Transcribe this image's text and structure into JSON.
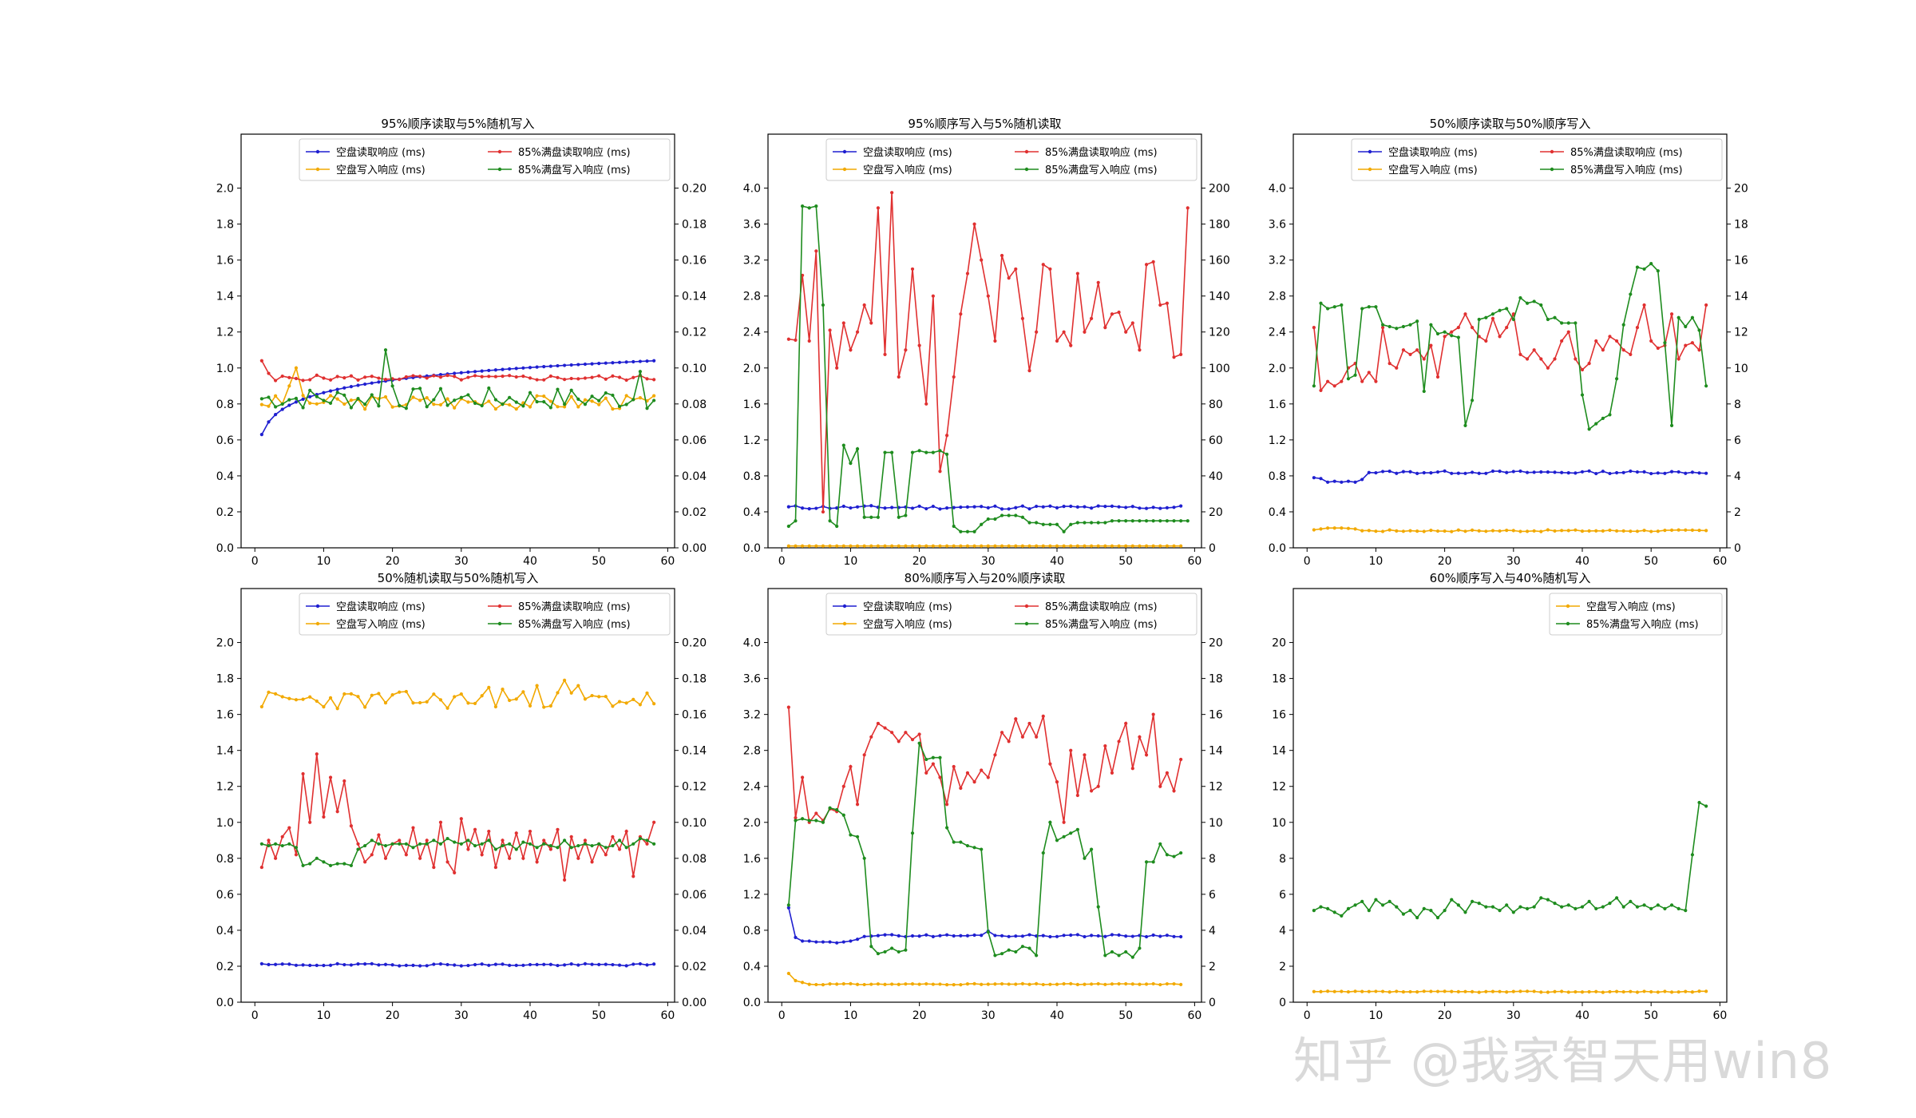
{
  "watermark": "知乎 @我家智天用win8",
  "colors": {
    "blue": "#1f1fd0",
    "orange": "#f2a900",
    "red": "#e03030",
    "green": "#1e8c1e",
    "axis": "#000000"
  },
  "chart_data": [
    {
      "type": "line",
      "title": "95%顺序读取与5%随机写入",
      "x_ticks": [
        0,
        10,
        20,
        30,
        40,
        50,
        60
      ],
      "xlim": [
        -2,
        61
      ],
      "ylim": [
        0,
        2.3
      ],
      "y_ticks": [
        0.0,
        0.2,
        0.4,
        0.6,
        0.8,
        1.0,
        1.2,
        1.4,
        1.6,
        1.8,
        2.0
      ],
      "y_tick_fmt": 1,
      "y2lim": [
        0,
        0.23
      ],
      "y2_ticks": [
        0.0,
        0.02,
        0.04,
        0.06,
        0.08,
        0.1,
        0.12,
        0.14,
        0.16,
        0.18,
        0.2
      ],
      "y2_tick_fmt": 2,
      "legend_cols": 2,
      "series": [
        {
          "name": "空盘读取响应 (ms)",
          "color": "blue",
          "axis": "left",
          "gen": "log",
          "a": 0.63,
          "b": 0.41
        },
        {
          "name": "空盘写入响应 (ms)",
          "color": "orange",
          "axis": "right",
          "gen": "noise",
          "base": 0.081,
          "amp": 0.004,
          "seed": 3,
          "overrides": {
            "6": 0.1,
            "5": 0.09
          }
        },
        {
          "name": "85%满盘读取响应 (ms)",
          "color": "red",
          "axis": "left",
          "gen": "noise",
          "base": 0.945,
          "amp": 0.015,
          "seed": 5,
          "overrides": {
            "1": 1.04,
            "2": 0.97,
            "3": 0.93
          }
        },
        {
          "name": "85%满盘写入响应 (ms)",
          "color": "green",
          "axis": "right",
          "gen": "noise",
          "base": 0.083,
          "amp": 0.006,
          "seed": 7,
          "overrides": {
            "19": 0.11,
            "20": 0.09,
            "56": 0.098
          }
        }
      ]
    },
    {
      "type": "line",
      "title": "95%顺序写入与5%随机读取",
      "x_ticks": [
        0,
        10,
        20,
        30,
        40,
        50,
        60
      ],
      "xlim": [
        -2,
        61
      ],
      "ylim": [
        0,
        4.6
      ],
      "y_ticks": [
        0.0,
        0.4,
        0.8,
        1.2,
        1.6,
        2.0,
        2.4,
        2.8,
        3.2,
        3.6,
        4.0
      ],
      "y_tick_fmt": 1,
      "y2lim": [
        0,
        230
      ],
      "y2_ticks": [
        0,
        20,
        40,
        60,
        80,
        100,
        120,
        140,
        160,
        180,
        200
      ],
      "y2_tick_fmt": 0,
      "legend_cols": 2,
      "series": [
        {
          "name": "空盘读取响应 (ms)",
          "color": "blue",
          "axis": "left",
          "gen": "noise",
          "base": 0.45,
          "amp": 0.02,
          "seed": 11
        },
        {
          "name": "空盘写入响应 (ms)",
          "color": "orange",
          "axis": "right",
          "gen": "const",
          "base": 1.0
        },
        {
          "name": "85%满盘读取响应 (ms)",
          "color": "red",
          "axis": "left",
          "gen": "list",
          "values": [
            2.32,
            2.31,
            3.03,
            2.3,
            3.3,
            0.4,
            2.42,
            2.0,
            2.5,
            2.2,
            2.4,
            2.7,
            2.5,
            3.78,
            2.15,
            3.95,
            1.9,
            2.2,
            3.1,
            2.25,
            1.6,
            2.8,
            0.85,
            1.25,
            1.9,
            2.6,
            3.05,
            3.6,
            3.2,
            2.8,
            2.3,
            3.25,
            3.0,
            3.1,
            2.55,
            1.97,
            2.4,
            3.15,
            3.1,
            2.3,
            2.4,
            2.25,
            3.05,
            2.4,
            2.55,
            2.95,
            2.45,
            2.6,
            2.62,
            2.4,
            2.5,
            2.2,
            3.15,
            3.18,
            2.7,
            2.72,
            2.12,
            2.15,
            3.78
          ]
        },
        {
          "name": "85%满盘写入响应 (ms)",
          "color": "green",
          "axis": "right",
          "gen": "list",
          "values": [
            12,
            15,
            190,
            189,
            190,
            135,
            15,
            12,
            57,
            47,
            55,
            17,
            17,
            17,
            53,
            53,
            17,
            18,
            53,
            54,
            53,
            53,
            54,
            52,
            12,
            9,
            9,
            9,
            13,
            16,
            16,
            18,
            18,
            18,
            17,
            14,
            14,
            13,
            13,
            13,
            9,
            13,
            14,
            14,
            14,
            14,
            14,
            15,
            15,
            15,
            15,
            15,
            15,
            15,
            15,
            15,
            15,
            15,
            15
          ]
        }
      ]
    },
    {
      "type": "line",
      "title": "50%顺序读取与50%顺序写入",
      "x_ticks": [
        0,
        10,
        20,
        30,
        40,
        50,
        60
      ],
      "xlim": [
        -2,
        61
      ],
      "ylim": [
        0,
        4.6
      ],
      "y_ticks": [
        0.0,
        0.4,
        0.8,
        1.2,
        1.6,
        2.0,
        2.4,
        2.8,
        3.2,
        3.6,
        4.0
      ],
      "y_tick_fmt": 1,
      "y2lim": [
        0,
        23
      ],
      "y2_ticks": [
        0,
        2,
        4,
        6,
        8,
        10,
        12,
        14,
        16,
        18,
        20
      ],
      "y2_tick_fmt": 0,
      "legend_cols": 2,
      "series": [
        {
          "name": "空盘读取响应 (ms)",
          "color": "blue",
          "axis": "left",
          "gen": "noise",
          "base": 0.84,
          "amp": 0.015,
          "seed": 13,
          "overrides": {
            "1": 0.78,
            "2": 0.77,
            "3": 0.73,
            "4": 0.74,
            "5": 0.73,
            "6": 0.74,
            "7": 0.73,
            "8": 0.76
          }
        },
        {
          "name": "空盘写入响应 (ms)",
          "color": "orange",
          "axis": "right",
          "gen": "noise",
          "base": 0.95,
          "amp": 0.05,
          "seed": 17,
          "overrides": {
            "1": 1.0,
            "2": 1.05,
            "3": 1.1,
            "4": 1.1,
            "5": 1.1,
            "6": 1.08,
            "7": 1.05
          }
        },
        {
          "name": "85%满盘读取响应 (ms)",
          "color": "red",
          "axis": "left",
          "gen": "list",
          "values": [
            2.45,
            1.75,
            1.85,
            1.8,
            1.85,
            2.0,
            2.05,
            1.85,
            1.95,
            1.85,
            2.45,
            2.05,
            2.0,
            2.2,
            2.15,
            2.2,
            2.1,
            2.25,
            1.9,
            2.35,
            2.4,
            2.45,
            2.6,
            2.45,
            2.35,
            2.3,
            2.55,
            2.35,
            2.45,
            2.6,
            2.15,
            2.1,
            2.2,
            2.1,
            2.0,
            2.1,
            2.3,
            2.4,
            2.1,
            1.98,
            2.05,
            2.3,
            2.2,
            2.35,
            2.3,
            2.2,
            2.15,
            2.45,
            2.7,
            2.3,
            2.22,
            2.25,
            2.6,
            2.1,
            2.25,
            2.28,
            2.2,
            2.7
          ]
        },
        {
          "name": "85%满盘写入响应 (ms)",
          "color": "green",
          "axis": "right",
          "gen": "list",
          "values": [
            9,
            13.6,
            13.3,
            13.4,
            13.5,
            9.4,
            9.6,
            13.3,
            13.4,
            13.4,
            12.4,
            12.3,
            12.2,
            12.3,
            12.4,
            12.6,
            8.7,
            12.4,
            11.9,
            12.0,
            11.8,
            11.7,
            6.8,
            8.2,
            12.7,
            12.8,
            13.0,
            13.2,
            13.3,
            12.7,
            13.9,
            13.6,
            13.7,
            13.5,
            12.7,
            12.8,
            12.5,
            12.5,
            12.5,
            8.5,
            6.6,
            6.9,
            7.2,
            7.4,
            9.4,
            12.4,
            14.1,
            15.6,
            15.5,
            15.8,
            15.4,
            11.4,
            6.8,
            12.8,
            12.3,
            12.8,
            12.1,
            9.0
          ]
        }
      ]
    },
    {
      "type": "line",
      "title": "50%随机读取与50%随机写入",
      "x_ticks": [
        0,
        10,
        20,
        30,
        40,
        50,
        60
      ],
      "xlim": [
        -2,
        61
      ],
      "ylim": [
        0,
        2.3
      ],
      "y_ticks": [
        0.0,
        0.2,
        0.4,
        0.6,
        0.8,
        1.0,
        1.2,
        1.4,
        1.6,
        1.8,
        2.0
      ],
      "y_tick_fmt": 1,
      "y2lim": [
        0,
        0.23
      ],
      "y2_ticks": [
        0.0,
        0.02,
        0.04,
        0.06,
        0.08,
        0.1,
        0.12,
        0.14,
        0.16,
        0.18,
        0.2
      ],
      "y2_tick_fmt": 2,
      "legend_cols": 2,
      "series": [
        {
          "name": "空盘读取响应 (ms)",
          "color": "blue",
          "axis": "left",
          "gen": "noise",
          "base": 0.208,
          "amp": 0.006,
          "seed": 19
        },
        {
          "name": "空盘写入响应 (ms)",
          "color": "orange",
          "axis": "right",
          "gen": "noise",
          "base": 0.168,
          "amp": 0.005,
          "seed": 23,
          "overrides": {
            "45": 0.179,
            "41": 0.176,
            "47": 0.176,
            "34": 0.175,
            "36": 0.174
          }
        },
        {
          "name": "85%满盘读取响应 (ms)",
          "color": "red",
          "axis": "left",
          "gen": "list",
          "values": [
            0.75,
            0.9,
            0.8,
            0.92,
            0.97,
            0.82,
            1.27,
            1.0,
            1.38,
            1.03,
            1.25,
            1.06,
            1.23,
            0.98,
            0.88,
            0.78,
            0.82,
            0.93,
            0.8,
            0.88,
            0.9,
            0.82,
            0.97,
            0.8,
            0.9,
            0.75,
            1.0,
            0.78,
            0.72,
            1.02,
            0.85,
            0.96,
            0.82,
            0.95,
            0.75,
            0.9,
            0.8,
            0.94,
            0.8,
            0.95,
            0.78,
            0.9,
            0.85,
            0.96,
            0.68,
            0.92,
            0.8,
            0.9,
            0.78,
            0.88,
            0.82,
            0.92,
            0.85,
            0.95,
            0.7,
            0.92,
            0.88,
            1.0
          ]
        },
        {
          "name": "85%满盘写入响应 (ms)",
          "color": "green",
          "axis": "right",
          "gen": "list",
          "values": [
            0.088,
            0.087,
            0.088,
            0.087,
            0.088,
            0.086,
            0.076,
            0.077,
            0.08,
            0.078,
            0.076,
            0.077,
            0.077,
            0.076,
            0.085,
            0.087,
            0.09,
            0.088,
            0.087,
            0.088,
            0.088,
            0.088,
            0.086,
            0.088,
            0.088,
            0.09,
            0.088,
            0.091,
            0.089,
            0.088,
            0.09,
            0.087,
            0.088,
            0.09,
            0.085,
            0.087,
            0.088,
            0.085,
            0.089,
            0.088,
            0.086,
            0.088,
            0.087,
            0.086,
            0.09,
            0.086,
            0.087,
            0.088,
            0.087,
            0.088,
            0.086,
            0.087,
            0.09,
            0.086,
            0.088,
            0.091,
            0.09,
            0.088
          ]
        }
      ]
    },
    {
      "type": "line",
      "title": "80%顺序写入与20%顺序读取",
      "x_ticks": [
        0,
        10,
        20,
        30,
        40,
        50,
        60
      ],
      "xlim": [
        -2,
        61
      ],
      "ylim": [
        0,
        4.6
      ],
      "y_ticks": [
        0.0,
        0.4,
        0.8,
        1.2,
        1.6,
        2.0,
        2.4,
        2.8,
        3.2,
        3.6,
        4.0
      ],
      "y_tick_fmt": 1,
      "y2lim": [
        0,
        23
      ],
      "y2_ticks": [
        0,
        2,
        4,
        6,
        8,
        10,
        12,
        14,
        16,
        18,
        20
      ],
      "y2_tick_fmt": 0,
      "legend_cols": 2,
      "series": [
        {
          "name": "空盘读取响应 (ms)",
          "color": "blue",
          "axis": "left",
          "gen": "noise",
          "base": 0.74,
          "amp": 0.012,
          "seed": 29,
          "overrides": {
            "1": 1.05,
            "2": 0.72,
            "3": 0.68,
            "4": 0.68,
            "5": 0.67,
            "6": 0.67,
            "7": 0.67,
            "8": 0.66,
            "9": 0.67,
            "10": 0.68,
            "11": 0.7,
            "30": 0.79
          }
        },
        {
          "name": "空盘写入响应 (ms)",
          "color": "orange",
          "axis": "right",
          "gen": "noise",
          "base": 1.0,
          "amp": 0.03,
          "seed": 31,
          "overrides": {
            "1": 1.6,
            "2": 1.2,
            "3": 1.1
          }
        },
        {
          "name": "85%满盘读取响应 (ms)",
          "color": "red",
          "axis": "left",
          "gen": "list",
          "values": [
            3.28,
            2.05,
            2.5,
            2.0,
            2.1,
            2.02,
            2.15,
            2.12,
            2.4,
            2.62,
            2.2,
            2.75,
            2.95,
            3.1,
            3.05,
            3.0,
            2.9,
            3.0,
            2.92,
            2.98,
            2.55,
            2.65,
            2.5,
            2.2,
            2.62,
            2.38,
            2.55,
            2.45,
            2.58,
            2.5,
            2.75,
            3.0,
            2.9,
            3.15,
            2.95,
            3.1,
            2.95,
            3.18,
            2.65,
            2.45,
            2.0,
            2.8,
            2.3,
            2.75,
            2.35,
            2.4,
            2.85,
            2.55,
            2.9,
            3.1,
            2.6,
            2.95,
            2.75,
            3.2,
            2.4,
            2.55,
            2.35,
            2.7
          ]
        },
        {
          "name": "85%满盘写入响应 (ms)",
          "color": "green",
          "axis": "right",
          "gen": "list",
          "values": [
            5.4,
            10.1,
            10.2,
            10.1,
            10.1,
            10.0,
            10.8,
            10.7,
            10.4,
            9.3,
            9.2,
            8.0,
            3.1,
            2.7,
            2.8,
            3.0,
            2.8,
            2.9,
            9.4,
            14.4,
            13.5,
            13.6,
            13.6,
            9.7,
            8.9,
            8.9,
            8.7,
            8.6,
            8.5,
            3.9,
            2.6,
            2.7,
            2.9,
            2.8,
            3.1,
            3.0,
            2.6,
            8.3,
            10.0,
            9.0,
            9.2,
            9.4,
            9.6,
            8.0,
            8.5,
            5.3,
            2.6,
            2.8,
            2.6,
            2.8,
            2.5,
            3.0,
            7.8,
            7.8,
            8.8,
            8.2,
            8.1,
            8.3
          ]
        }
      ]
    },
    {
      "type": "line",
      "title": "60%顺序写入与40%随机写入",
      "x_ticks": [
        0,
        10,
        20,
        30,
        40,
        50,
        60
      ],
      "xlim": [
        -2,
        61
      ],
      "ylim": null,
      "y_ticks": [],
      "y_tick_fmt": 0,
      "y2lim": [
        0,
        23
      ],
      "y2_ticks": [
        0,
        2,
        4,
        6,
        8,
        10,
        12,
        14,
        16,
        18,
        20
      ],
      "y2_tick_fmt": 0,
      "y2_side": "left",
      "legend_cols": 1,
      "series": [
        {
          "name": "空盘写入响应 (ms)",
          "color": "orange",
          "axis": "right",
          "gen": "noise",
          "base": 0.58,
          "amp": 0.03,
          "seed": 37
        },
        {
          "name": "85%满盘写入响应 (ms)",
          "color": "green",
          "axis": "right",
          "gen": "list",
          "values": [
            5.1,
            5.3,
            5.2,
            5.0,
            4.8,
            5.2,
            5.4,
            5.6,
            5.1,
            5.7,
            5.4,
            5.6,
            5.3,
            4.9,
            5.1,
            4.7,
            5.2,
            5.1,
            4.7,
            5.1,
            5.7,
            5.4,
            5.0,
            5.6,
            5.5,
            5.3,
            5.3,
            5.1,
            5.4,
            5.0,
            5.3,
            5.2,
            5.3,
            5.8,
            5.7,
            5.5,
            5.3,
            5.4,
            5.2,
            5.3,
            5.6,
            5.2,
            5.3,
            5.5,
            5.8,
            5.3,
            5.6,
            5.3,
            5.4,
            5.2,
            5.4,
            5.2,
            5.4,
            5.2,
            5.1,
            8.2,
            11.1,
            10.9
          ]
        }
      ]
    }
  ]
}
